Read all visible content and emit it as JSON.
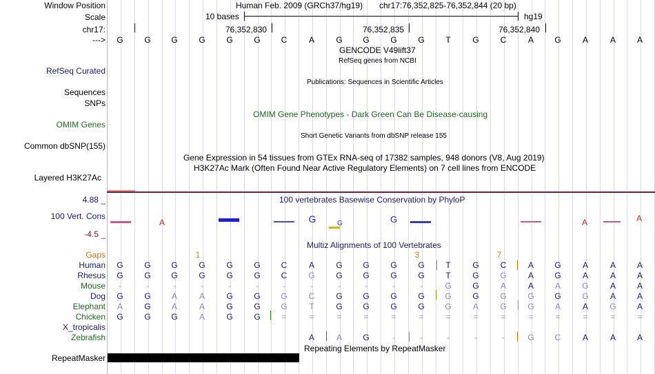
{
  "header": {
    "window_position_label": "Window Position",
    "assembly": "Human Feb. 2009 (GRCh37/hg19)",
    "position": "chr17:76,352,825-76,352,844 (20 bp)",
    "scale_label": "Scale",
    "scale_text": "10 bases",
    "db": "hg19",
    "chrom_label": "chr17:",
    "coords": [
      "76,352,830",
      "76,352,835",
      "76,352,840"
    ],
    "arrow": "--->",
    "bases": [
      "G",
      "G",
      "G",
      "G",
      "G",
      "G",
      "C",
      "A",
      "G",
      "G",
      "G",
      "G",
      "T",
      "G",
      "C",
      "A",
      "G",
      "A",
      "A",
      "A"
    ]
  },
  "tracks": {
    "gencode": "GENCODE V49lift37",
    "refseq_sub": "RefSeq genes from NCBI",
    "refseq_label": "RefSeq Curated",
    "publications": "Publications: Sequences in Scientific Articles",
    "sequences_label": "Sequences",
    "snps_label": "SNPs",
    "omim_title": "OMIM Gene Phenotypes - Dark Green Can Be Disease-causing",
    "omim_label": "OMIM Genes",
    "dbsnp_title": "Short Genetic Variants from dbSNP release 155",
    "dbsnp_label": "Common dbSNP(155)",
    "gtex_title": "Gene Expression in 54 tissues from GTEx RNA-seq of 17382 samples, 948 donors (V8, Aug 2019)",
    "h3k27_title": "H3K27Ac Mark (Often Found Near Active Regulatory Elements) on 7 cell lines from ENCODE",
    "h3k27_label": "Layered H3K27Ac",
    "phylop_title": "100 vertebrates Basewise Conservation by PhyloP",
    "phylop_max": "4.88 _",
    "phylop_min": "-4.5 _",
    "cons_label": "100 Vert. Cons",
    "multiz_title": "Multiz Alignments of 100 Vertebrates",
    "repeat_title": "Repeating Elements by RepeatMasker",
    "repeat_label": "RepeatMasker",
    "colors": {
      "phylop_pos": "#1f1fd6",
      "phylop_neg": "#d61f1f",
      "repeat": "#000000"
    }
  },
  "alignment": {
    "gaps_label": "Gaps",
    "gap_marks": [
      {
        "col": 3,
        "text": "1"
      },
      {
        "col": 11,
        "text": "3"
      },
      {
        "col": 14,
        "text": "7"
      }
    ],
    "species": [
      {
        "name": "Human",
        "seq": [
          "G",
          "G",
          "G",
          "G",
          "G",
          "G",
          "C",
          "A",
          "G",
          "G",
          "G",
          "G",
          "T",
          "G",
          "C",
          "A",
          "G",
          "A",
          "A",
          "A"
        ]
      },
      {
        "name": "Rhesus",
        "seq": [
          "G",
          "G",
          "G",
          "G",
          "G",
          "G",
          "C",
          "G",
          "G",
          "G",
          "G",
          "G",
          "T",
          "G",
          "G",
          "A",
          "G",
          "A",
          "A",
          "A"
        ]
      },
      {
        "name": "Mouse",
        "seq": [
          "-",
          "-",
          "-",
          "-",
          "-",
          "-",
          "-",
          "-",
          "-",
          "-",
          "-",
          "-",
          "G",
          "G",
          "A",
          "A",
          "A",
          "G",
          "A",
          "A"
        ]
      },
      {
        "name": "Dog",
        "seq": [
          "G",
          "G",
          "A",
          "A",
          "G",
          "G",
          "G",
          "C",
          "G",
          "G",
          "G",
          "G",
          "G",
          "G",
          "G",
          "G",
          "G",
          "G",
          "A",
          "A"
        ]
      },
      {
        "name": "Elephant",
        "seq": [
          "A",
          "G",
          "A",
          "A",
          "G",
          "G",
          "G",
          "T",
          "G",
          "G",
          "G",
          "G",
          "G",
          "A",
          "G",
          "G",
          "A",
          "A",
          "G",
          "A"
        ]
      },
      {
        "name": "Chicken",
        "seq": [
          "G",
          "G",
          "G",
          "A",
          "G",
          "G",
          "=",
          "=",
          "=",
          "=",
          "=",
          "=",
          "=",
          "=",
          "=",
          "=",
          "=",
          "=",
          "=",
          "="
        ]
      },
      {
        "name": "X_tropicalis",
        "seq": [
          "",
          "",
          "",
          "",
          "",
          "",
          "",
          "",
          "",
          "",
          "",
          "",
          "",
          "",
          "",
          "",
          "",
          "",
          "",
          ""
        ]
      },
      {
        "name": "Zebrafish",
        "seq": [
          "",
          "",
          "",
          "",
          "",
          "",
          "",
          "A",
          "A",
          "G",
          "-",
          "-",
          "-",
          "-",
          "-",
          "G",
          "C",
          "A",
          "A",
          "A"
        ]
      }
    ]
  }
}
